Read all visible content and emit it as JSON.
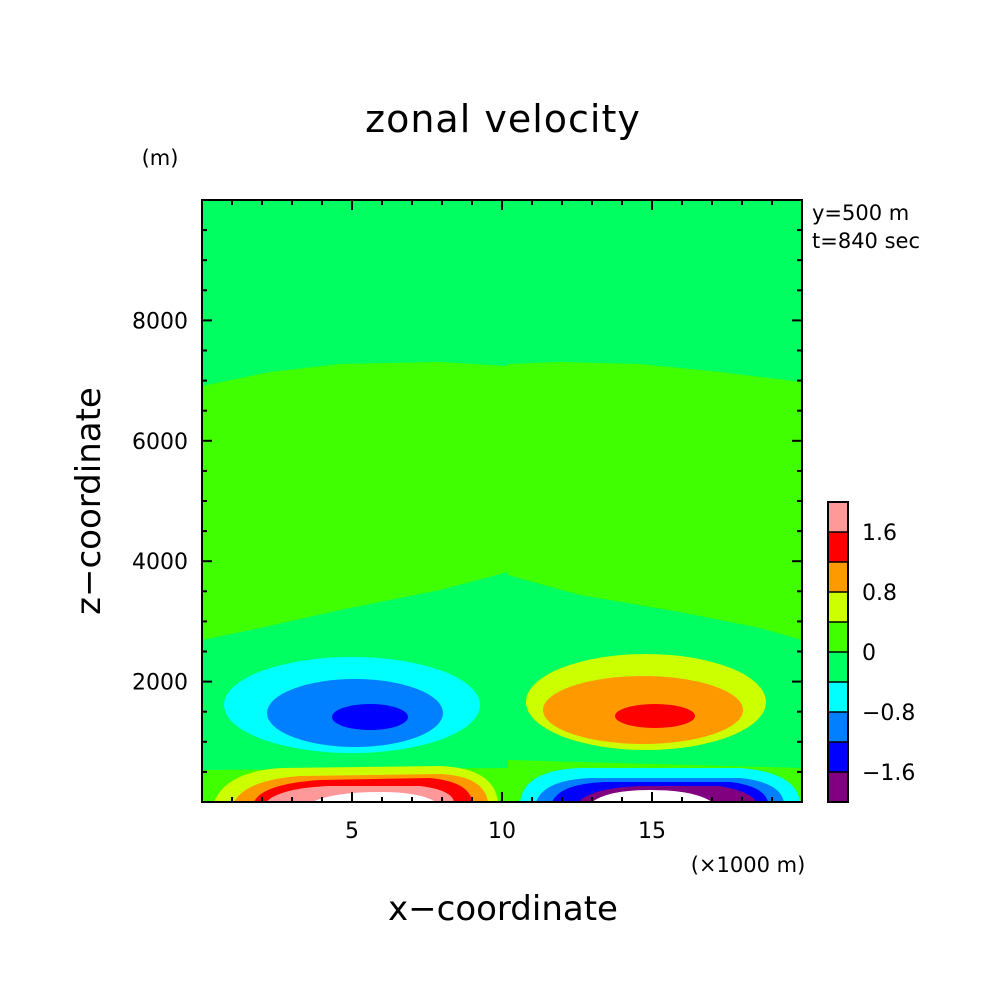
{
  "chart_data": {
    "type": "heatmap",
    "title": "zonal velocity",
    "xlabel": "x−coordinate",
    "ylabel": "z−coordinate",
    "x_unit": "(×1000 m)",
    "y_unit": "(m)",
    "annotations": [
      "y=500 m",
      "t=840 sec"
    ],
    "xlim": [
      0,
      20
    ],
    "ylim": [
      0,
      10000
    ],
    "x_ticks": [
      5,
      10,
      15
    ],
    "x_tick_labels": [
      "5",
      "10",
      "15"
    ],
    "y_ticks": [
      2000,
      4000,
      6000,
      8000
    ],
    "y_tick_labels": [
      "2000",
      "4000",
      "6000",
      "8000"
    ],
    "colorbar": {
      "levels": [
        -2.0,
        -1.6,
        -1.2,
        -0.8,
        -0.4,
        0,
        0.4,
        0.8,
        1.2,
        1.6,
        2.0
      ],
      "labels": [
        "1.6",
        "0.8",
        "0",
        "−0.8",
        "−1.6"
      ],
      "label_values": [
        1.6,
        0.8,
        0,
        -0.8,
        -1.6
      ],
      "colors": [
        "#800080",
        "#0000ff",
        "#0080ff",
        "#00ffff",
        "#00ff60",
        "#40ff00",
        "#ccff00",
        "#ff9900",
        "#ff0000",
        "#ff9999"
      ]
    },
    "features": [
      {
        "type": "background",
        "levels": [
          0,
          0.4
        ]
      },
      {
        "type": "band",
        "levels": [
          -0.4,
          0
        ]
      },
      {
        "type": "negative-core",
        "x": 6,
        "z": 1400,
        "min_level": -1.6
      },
      {
        "type": "positive-core",
        "x": 15,
        "z": 1450,
        "max_level": 1.6
      },
      {
        "type": "surface-positive",
        "x": 6,
        "z": 100,
        "max_level": 2.0
      },
      {
        "type": "surface-negative",
        "x": 15,
        "z": 100,
        "min_level": -2.0
      }
    ]
  }
}
